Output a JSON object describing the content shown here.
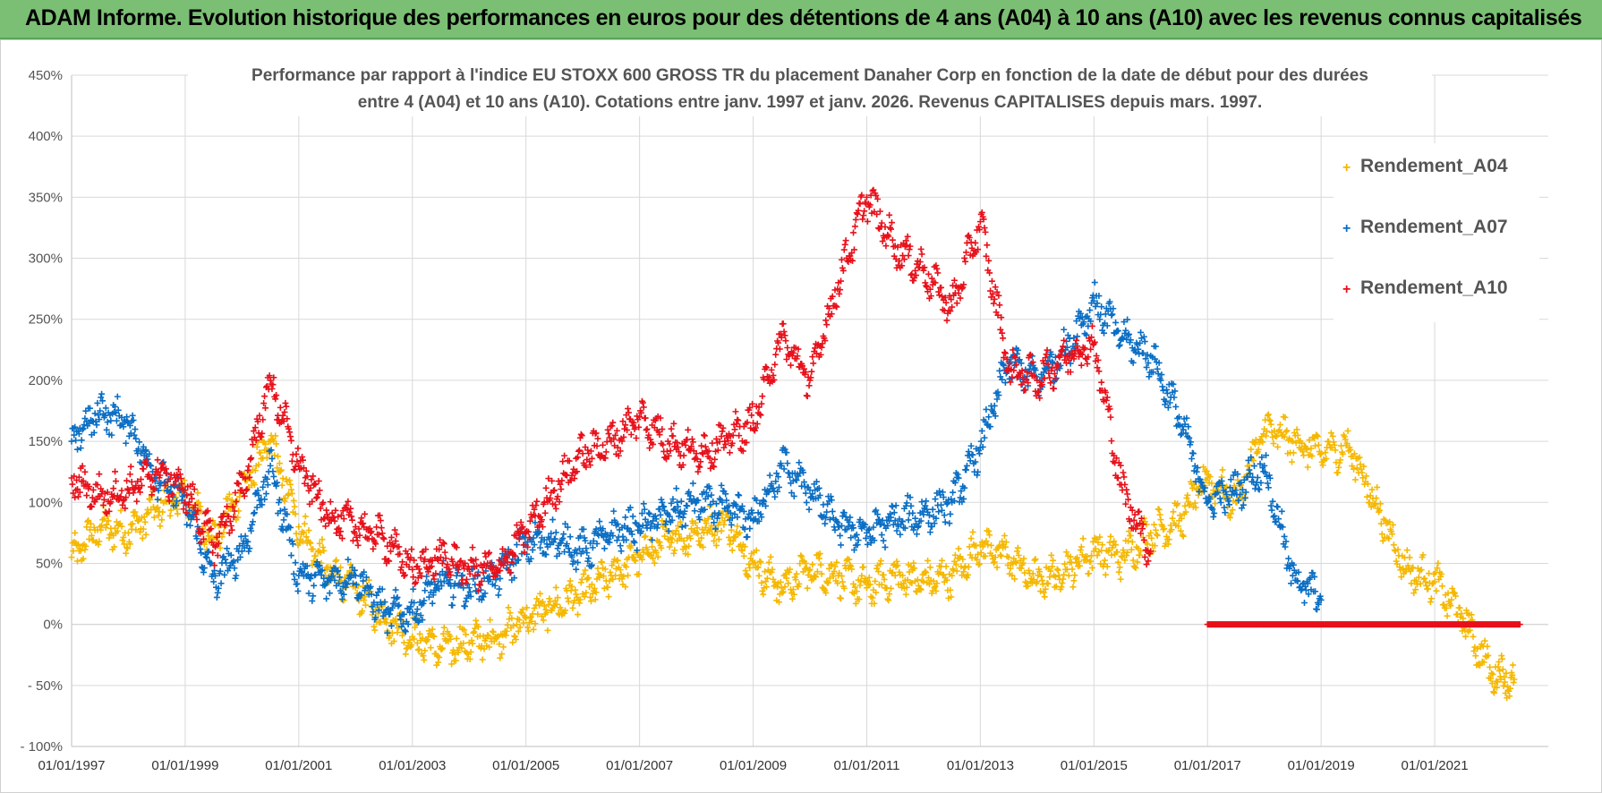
{
  "banner": {
    "title": "ADAM Informe. Evolution historique des performances en euros pour des détentions de 4 ans (A04) à 10 ans (A10) avec les revenus connus capitalisés"
  },
  "colors": {
    "banner_bg": "#7bbf74",
    "A04": "#f5b800",
    "A07": "#0a6ec4",
    "A10": "#e8101a",
    "grid": "#d9d9d9"
  },
  "chart_data": {
    "type": "scatter",
    "title_line1": "Performance par rapport à l'indice EU STOXX 600 GROSS TR  du placement Danaher Corp en fonction de la date de début pour des durées",
    "title_line2": "entre 4 (A04) et 10 ans (A10). Cotations entre janv. 1997 et janv. 2026. Revenus CAPITALISES depuis mars. 1997.",
    "xlabel": "",
    "ylabel": "",
    "x_range": [
      1997.0,
      2023.0
    ],
    "ylim": [
      -100,
      450
    ],
    "y_ticks": [
      -100,
      -50,
      0,
      50,
      100,
      150,
      200,
      250,
      300,
      350,
      400,
      450
    ],
    "y_tick_labels": [
      "- 100%",
      "- 50%",
      "0%",
      "50%",
      "100%",
      "150%",
      "200%",
      "250%",
      "300%",
      "350%",
      "400%",
      "450%"
    ],
    "x_ticks": [
      1997,
      1999,
      2001,
      2003,
      2005,
      2007,
      2009,
      2011,
      2013,
      2015,
      2017,
      2019,
      2021
    ],
    "x_tick_labels": [
      "01/01/1997",
      "01/01/1999",
      "01/01/2001",
      "01/01/2003",
      "01/01/2005",
      "01/01/2007",
      "01/01/2009",
      "01/01/2011",
      "01/01/2013",
      "01/01/2015",
      "01/01/2017",
      "01/01/2019",
      "01/01/2021"
    ],
    "legend_position": "right",
    "series": [
      {
        "name": "Rendement_A04",
        "color": "#f5b800",
        "x": [
          1997.0,
          1997.5,
          1998.0,
          1998.5,
          1999.0,
          1999.5,
          2000.0,
          2000.5,
          2001.0,
          2001.5,
          2002.0,
          2002.5,
          2003.0,
          2003.5,
          2004.0,
          2004.5,
          2005.0,
          2005.5,
          2006.0,
          2006.5,
          2007.0,
          2007.5,
          2008.0,
          2008.5,
          2009.0,
          2009.5,
          2010.0,
          2010.5,
          2011.0,
          2011.5,
          2012.0,
          2012.5,
          2013.0,
          2013.5,
          2014.0,
          2014.5,
          2015.0,
          2015.5,
          2016.0,
          2016.5,
          2017.0,
          2017.5,
          2018.0,
          2018.5,
          2019.0,
          2019.5,
          2020.0,
          2020.5,
          2021.0,
          2021.5,
          2022.0,
          2022.4
        ],
        "y": [
          55,
          80,
          75,
          95,
          105,
          70,
          110,
          150,
          80,
          45,
          30,
          5,
          -10,
          -20,
          -15,
          -10,
          5,
          15,
          25,
          40,
          55,
          70,
          75,
          85,
          50,
          30,
          45,
          40,
          30,
          40,
          35,
          40,
          65,
          55,
          35,
          45,
          60,
          55,
          75,
          85,
          120,
          100,
          160,
          150,
          140,
          145,
          95,
          45,
          35,
          5,
          -40,
          -45
        ]
      },
      {
        "name": "Rendement_A07",
        "color": "#0a6ec4",
        "x": [
          1997.0,
          1997.5,
          1998.0,
          1998.5,
          1999.0,
          1999.5,
          2000.0,
          2000.5,
          2001.0,
          2001.5,
          2002.0,
          2002.5,
          2003.0,
          2003.5,
          2004.0,
          2004.5,
          2005.0,
          2005.5,
          2006.0,
          2006.5,
          2007.0,
          2007.5,
          2008.0,
          2008.5,
          2009.0,
          2009.5,
          2010.0,
          2010.5,
          2011.0,
          2011.5,
          2012.0,
          2012.5,
          2013.0,
          2013.5,
          2014.0,
          2014.5,
          2015.0,
          2015.5,
          2016.0,
          2016.5,
          2017.0,
          2017.5,
          2018.0,
          2018.5,
          2019.0
        ],
        "y": [
          150,
          175,
          165,
          120,
          100,
          35,
          60,
          130,
          40,
          35,
          40,
          10,
          10,
          35,
          30,
          40,
          65,
          70,
          60,
          75,
          80,
          90,
          100,
          95,
          85,
          130,
          110,
          80,
          75,
          85,
          90,
          100,
          145,
          215,
          200,
          225,
          265,
          235,
          220,
          170,
          100,
          110,
          130,
          40,
          20
        ]
      },
      {
        "name": "Rendement_A10",
        "color": "#e8101a",
        "x": [
          1997.0,
          1997.5,
          1998.0,
          1998.5,
          1999.0,
          1999.5,
          2000.0,
          2000.5,
          2001.0,
          2001.5,
          2002.0,
          2002.5,
          2003.0,
          2003.5,
          2004.0,
          2004.5,
          2005.0,
          2005.5,
          2006.0,
          2006.5,
          2007.0,
          2007.5,
          2008.0,
          2008.5,
          2009.0,
          2009.5,
          2010.0,
          2010.5,
          2011.0,
          2011.5,
          2012.0,
          2012.5,
          2013.0,
          2013.5,
          2014.0,
          2014.5,
          2015.0,
          2015.5,
          2016.0,
          2016.5,
          2017.0,
          2017.5,
          2018.0,
          2018.5,
          2019.0,
          2019.5,
          2020.0,
          2020.5,
          2021.0,
          2021.5,
          2022.0,
          2022.5
        ],
        "y": [
          120,
          105,
          110,
          125,
          110,
          65,
          110,
          200,
          130,
          90,
          80,
          70,
          45,
          55,
          45,
          45,
          75,
          110,
          140,
          150,
          170,
          150,
          140,
          150,
          165,
          235,
          200,
          280,
          350,
          310,
          290,
          260,
          330,
          210,
          200,
          220,
          230,
          110,
          60,
          null,
          0,
          0,
          0,
          0,
          0,
          0,
          0,
          0,
          0,
          0,
          0,
          0
        ]
      }
    ]
  }
}
